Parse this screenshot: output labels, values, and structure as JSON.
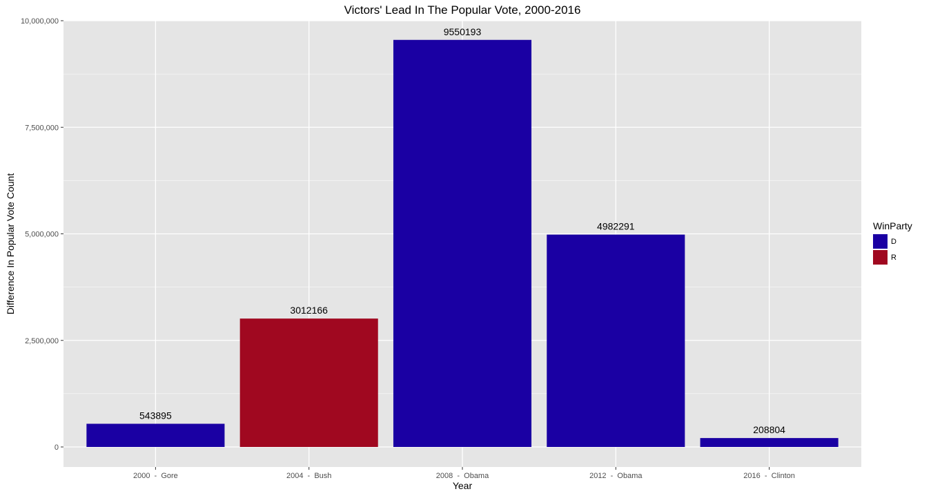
{
  "chart_data": {
    "type": "bar",
    "title": "Victors' Lead In The Popular Vote, 2000-2016",
    "xlabel": "Year",
    "ylabel": "Difference In Popular Vote Count",
    "categories": [
      "2000  -  Gore",
      "2004  -  Bush",
      "2008  -  Obama",
      "2012  -  Obama",
      "2016  -  Clinton"
    ],
    "values": [
      543895,
      3012166,
      9550193,
      4982291,
      208804
    ],
    "value_labels": [
      "543895",
      "3012166",
      "9550193",
      "4982291",
      "208804"
    ],
    "parties": [
      "D",
      "R",
      "D",
      "D",
      "D"
    ],
    "ylim": [
      0,
      10000000
    ],
    "yticks": [
      0,
      2500000,
      5000000,
      7500000,
      10000000
    ],
    "ytick_labels": [
      "0",
      "2,500,000",
      "5,000,000",
      "7,500,000",
      "10,000,000"
    ],
    "grid": true,
    "legend": {
      "title": "WinParty",
      "position": "right",
      "entries": [
        {
          "key": "D",
          "label": "D",
          "color": "#1a00a3"
        },
        {
          "key": "R",
          "label": "R",
          "color": "#a00820"
        }
      ]
    },
    "colors": {
      "panel_background": "#e5e5e5",
      "grid": "#ffffff"
    }
  }
}
